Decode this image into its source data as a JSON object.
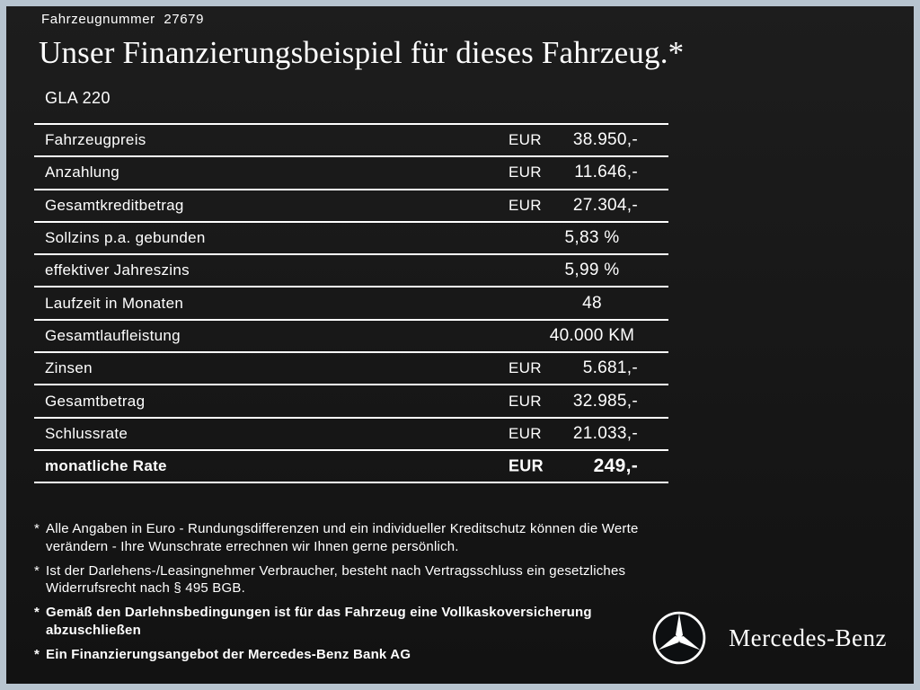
{
  "header": {
    "vehicle_number": "Fahrzeugnummer  27679",
    "title": "Unser Finanzierungsbeispiel für dieses Fahrzeug.*",
    "model": "GLA 220"
  },
  "table": {
    "rows": [
      {
        "label": "Fahrzeugpreis",
        "currency": "EUR",
        "value": "38.950,-",
        "bold": false
      },
      {
        "label": "Anzahlung",
        "currency": "EUR",
        "value": "11.646,-",
        "bold": false
      },
      {
        "label": "Gesamtkreditbetrag",
        "currency": "EUR",
        "value": "27.304,-",
        "bold": false
      },
      {
        "label": "Sollzins p.a. gebunden",
        "currency": "",
        "value": "5,83 %",
        "bold": false
      },
      {
        "label": "effektiver Jahreszins",
        "currency": "",
        "value": "5,99 %",
        "bold": false
      },
      {
        "label": "Laufzeit in Monaten",
        "currency": "",
        "value": "48",
        "bold": false
      },
      {
        "label": "Gesamtlaufleistung",
        "currency": "",
        "value": "40.000 KM",
        "bold": false
      },
      {
        "label": "Zinsen",
        "currency": "EUR",
        "value": "5.681,-",
        "bold": false
      },
      {
        "label": "Gesamtbetrag",
        "currency": "EUR",
        "value": "32.985,-",
        "bold": false
      },
      {
        "label": "Schlussrate",
        "currency": "EUR",
        "value": "21.033,-",
        "bold": false
      },
      {
        "label": "monatliche Rate",
        "currency": "EUR",
        "value": "249,-",
        "bold": true
      }
    ]
  },
  "footnotes": [
    {
      "marker": "*",
      "bold": false,
      "text": "Alle Angaben in Euro - Rundungsdifferenzen und ein individueller Kreditschutz können die Werte verändern - Ihre Wunschrate errechnen wir Ihnen gerne persönlich."
    },
    {
      "marker": "*",
      "bold": false,
      "text": "Ist der Darlehens-/Leasingnehmer Verbraucher, besteht nach Vertragsschluss ein gesetzliches Widerrufsrecht nach § 495 BGB."
    },
    {
      "marker": "*",
      "bold": true,
      "text": "Gemäß den Darlehnsbedingungen ist für das Fahrzeug eine Vollkaskoversicherung abzuschließen"
    },
    {
      "marker": "*",
      "bold": true,
      "text": "Ein Finanzierungsangebot der Mercedes-Benz Bank AG"
    }
  ],
  "brand": {
    "name": "Mercedes-Benz"
  },
  "colors": {
    "background": "#161616",
    "frame_border": "#b7c4cf",
    "text": "#ffffff",
    "line": "#ffffff"
  }
}
